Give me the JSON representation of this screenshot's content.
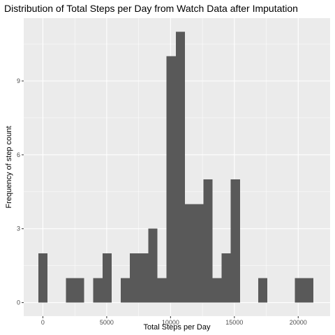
{
  "chart_data": {
    "type": "bar",
    "title": "Distribution of Total Steps per Day from Watch Data after Imputation",
    "xlabel": "Total Steps per Day",
    "ylabel": "Frequency of step count",
    "xlim": [
      -1500,
      22500
    ],
    "ylim": [
      -0.55,
      11.55
    ],
    "x_ticks": [
      0,
      5000,
      10000,
      15000,
      20000
    ],
    "x_tick_labels": [
      "0",
      "5000",
      "10000",
      "15000",
      "20000"
    ],
    "y_ticks": [
      0,
      3,
      6,
      9
    ],
    "y_tick_labels": [
      "0",
      "3",
      "6",
      "9"
    ],
    "bin_width": 718,
    "bins": [
      {
        "start": -359,
        "end": 359,
        "count": 2
      },
      {
        "start": 1795,
        "end": 2513,
        "count": 1
      },
      {
        "start": 2513,
        "end": 3231,
        "count": 1
      },
      {
        "start": 3949,
        "end": 4667,
        "count": 1
      },
      {
        "start": 4667,
        "end": 5385,
        "count": 2
      },
      {
        "start": 6103,
        "end": 6821,
        "count": 1
      },
      {
        "start": 6821,
        "end": 7539,
        "count": 2
      },
      {
        "start": 7539,
        "end": 8257,
        "count": 2
      },
      {
        "start": 8257,
        "end": 8975,
        "count": 3
      },
      {
        "start": 8975,
        "end": 9693,
        "count": 1
      },
      {
        "start": 9693,
        "end": 10411,
        "count": 10
      },
      {
        "start": 10411,
        "end": 11129,
        "count": 11
      },
      {
        "start": 11129,
        "end": 11847,
        "count": 4
      },
      {
        "start": 11847,
        "end": 12565,
        "count": 4
      },
      {
        "start": 12565,
        "end": 13283,
        "count": 5
      },
      {
        "start": 13283,
        "end": 14001,
        "count": 1
      },
      {
        "start": 14001,
        "end": 14719,
        "count": 2
      },
      {
        "start": 14719,
        "end": 15437,
        "count": 5
      },
      {
        "start": 16873,
        "end": 17591,
        "count": 1
      },
      {
        "start": 19745,
        "end": 20463,
        "count": 1
      },
      {
        "start": 20463,
        "end": 21181,
        "count": 1
      }
    ],
    "grid": true,
    "colors": {
      "panel_background": "#ebebeb",
      "grid_major": "#ffffff",
      "bar_fill": "#595959",
      "tick_label": "#4d4d4d",
      "tick_mark": "#333333"
    }
  }
}
